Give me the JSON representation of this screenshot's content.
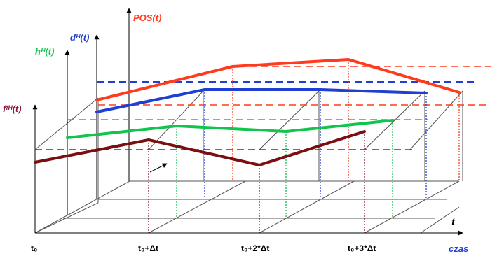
{
  "axes": {
    "pos": {
      "label": "POS(t)",
      "color": "#ff3b1f"
    },
    "d": {
      "label": "dᴴ(t)",
      "color": "#1f3fd1"
    },
    "h": {
      "label": "hᴴ(t)",
      "color": "#11c44c"
    },
    "f": {
      "label": "fᶠᴴ(t)",
      "color": "#8b1a3a"
    },
    "t": {
      "label": "t",
      "color": "#000000"
    },
    "czas": {
      "label": "czas",
      "color": "#1f3fd1"
    }
  },
  "time_labels": [
    "t₀",
    "t₀+Δt",
    "t₀+2*Δt",
    "t₀+3*Δt"
  ],
  "series_colors": {
    "pos": "#ff3b1f",
    "d": "#1f3fd1",
    "h": "#11c44c",
    "f": "#7a0f12"
  }
}
